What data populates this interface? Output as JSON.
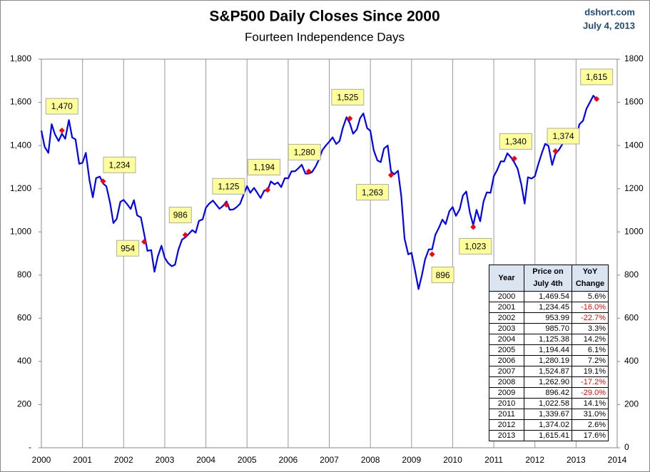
{
  "chart_data": {
    "type": "line",
    "title": "S&P500 Daily Closes Since 2000",
    "subtitle": "Fourteen Independence Days",
    "source": "dshort.com",
    "date": "July 4, 2013",
    "xlim": [
      2000,
      2014
    ],
    "xticks": [
      2000,
      2001,
      2002,
      2003,
      2004,
      2005,
      2006,
      2007,
      2008,
      2009,
      2010,
      2011,
      2012,
      2013,
      2014
    ],
    "ylim": [
      0,
      1800
    ],
    "yticks": [
      {
        "value": 0,
        "label": "-"
      },
      {
        "value": 200,
        "label": "200"
      },
      {
        "value": 400,
        "label": "400"
      },
      {
        "value": 600,
        "label": "600"
      },
      {
        "value": 800,
        "label": "800"
      },
      {
        "value": 1000,
        "label": "1,000"
      },
      {
        "value": 1200,
        "label": "1,200"
      },
      {
        "value": 1400,
        "label": "1,400"
      },
      {
        "value": 1600,
        "label": "1,600"
      },
      {
        "value": 1800,
        "label": "1,800"
      }
    ],
    "y2lim": [
      0,
      1800
    ],
    "y2ticks": [
      0,
      200,
      400,
      600,
      800,
      1000,
      1200,
      1400,
      1600,
      1800
    ],
    "x_grid": true,
    "line": {
      "color": "#0000ff",
      "x": [
        2000.0,
        2000.08,
        2000.17,
        2000.25,
        2000.33,
        2000.42,
        2000.5,
        2000.58,
        2000.67,
        2000.75,
        2000.83,
        2000.92,
        2001.0,
        2001.08,
        2001.17,
        2001.25,
        2001.33,
        2001.42,
        2001.5,
        2001.58,
        2001.67,
        2001.75,
        2001.83,
        2001.92,
        2002.0,
        2002.08,
        2002.17,
        2002.25,
        2002.33,
        2002.42,
        2002.5,
        2002.58,
        2002.67,
        2002.75,
        2002.83,
        2002.92,
        2003.0,
        2003.08,
        2003.17,
        2003.25,
        2003.33,
        2003.42,
        2003.5,
        2003.58,
        2003.67,
        2003.75,
        2003.83,
        2003.92,
        2004.0,
        2004.08,
        2004.17,
        2004.25,
        2004.33,
        2004.42,
        2004.5,
        2004.58,
        2004.67,
        2004.75,
        2004.83,
        2004.92,
        2005.0,
        2005.08,
        2005.17,
        2005.25,
        2005.33,
        2005.42,
        2005.5,
        2005.58,
        2005.67,
        2005.75,
        2005.83,
        2005.92,
        2006.0,
        2006.08,
        2006.17,
        2006.25,
        2006.33,
        2006.42,
        2006.5,
        2006.58,
        2006.67,
        2006.75,
        2006.83,
        2006.92,
        2007.0,
        2007.08,
        2007.17,
        2007.25,
        2007.33,
        2007.42,
        2007.5,
        2007.58,
        2007.67,
        2007.75,
        2007.83,
        2007.92,
        2008.0,
        2008.08,
        2008.17,
        2008.25,
        2008.33,
        2008.42,
        2008.5,
        2008.58,
        2008.67,
        2008.75,
        2008.83,
        2008.92,
        2009.0,
        2009.08,
        2009.17,
        2009.25,
        2009.33,
        2009.42,
        2009.5,
        2009.58,
        2009.67,
        2009.75,
        2009.83,
        2009.92,
        2010.0,
        2010.08,
        2010.17,
        2010.25,
        2010.33,
        2010.42,
        2010.5,
        2010.58,
        2010.67,
        2010.75,
        2010.83,
        2010.92,
        2011.0,
        2011.08,
        2011.17,
        2011.25,
        2011.33,
        2011.42,
        2011.5,
        2011.58,
        2011.67,
        2011.75,
        2011.83,
        2011.92,
        2012.0,
        2012.08,
        2012.17,
        2012.25,
        2012.33,
        2012.42,
        2012.5,
        2012.58,
        2012.67,
        2012.75,
        2012.83,
        2012.92,
        2013.0,
        2013.08,
        2013.17,
        2013.25,
        2013.33,
        2013.42,
        2013.5
      ],
      "values": [
        1469,
        1394,
        1366,
        1499,
        1452,
        1421,
        1455,
        1431,
        1518,
        1437,
        1429,
        1315,
        1320,
        1366,
        1240,
        1160,
        1249,
        1256,
        1224,
        1211,
        1134,
        1041,
        1060,
        1139,
        1148,
        1130,
        1106,
        1147,
        1076,
        1067,
        990,
        912,
        916,
        815,
        885,
        936,
        880,
        856,
        841,
        848,
        917,
        964,
        975,
        990,
        1008,
        996,
        1051,
        1058,
        1112,
        1131,
        1145,
        1126,
        1107,
        1121,
        1141,
        1102,
        1104,
        1115,
        1130,
        1174,
        1212,
        1181,
        1204,
        1181,
        1157,
        1192,
        1191,
        1234,
        1220,
        1229,
        1207,
        1249,
        1248,
        1280,
        1281,
        1295,
        1311,
        1270,
        1270,
        1277,
        1304,
        1336,
        1378,
        1401,
        1418,
        1438,
        1407,
        1421,
        1482,
        1531,
        1503,
        1455,
        1474,
        1527,
        1549,
        1481,
        1468,
        1378,
        1331,
        1323,
        1386,
        1400,
        1280,
        1267,
        1283,
        1166,
        969,
        896,
        903,
        826,
        735,
        798,
        873,
        919,
        919,
        987,
        1021,
        1057,
        1036,
        1096,
        1115,
        1074,
        1104,
        1169,
        1187,
        1089,
        1031,
        1102,
        1049,
        1141,
        1183,
        1181,
        1258,
        1286,
        1327,
        1326,
        1364,
        1345,
        1321,
        1292,
        1219,
        1131,
        1253,
        1247,
        1258,
        1312,
        1366,
        1408,
        1398,
        1310,
        1362,
        1379,
        1407,
        1441,
        1412,
        1416,
        1426,
        1498,
        1515,
        1569,
        1598,
        1631,
        1615
      ]
    },
    "july4": {
      "color": "#ff0000",
      "label_color": "#ffff99",
      "x": [
        2000.5,
        2001.5,
        2002.5,
        2003.5,
        2004.5,
        2005.5,
        2006.5,
        2007.5,
        2008.5,
        2009.5,
        2010.5,
        2011.5,
        2012.5,
        2013.5
      ],
      "values": [
        1469.54,
        1234.45,
        953.99,
        985.7,
        1125.38,
        1194.44,
        1280.19,
        1524.87,
        1262.9,
        896.42,
        1022.58,
        1339.67,
        1374.02,
        1615.41
      ],
      "value_labels": [
        "1,470",
        "1,234",
        "954",
        "986",
        "1,125",
        "1,194",
        "1,280",
        "1,525",
        "1,263",
        "896",
        "1,023",
        "1,340",
        "1,374",
        "1,615"
      ]
    }
  },
  "table": {
    "negative_color": "#ff0000",
    "header": [
      "Year",
      "Price on July 4th",
      "YoY Change"
    ],
    "rows": [
      [
        "2000",
        "1,469.54",
        "5.6%"
      ],
      [
        "2001",
        "1,234.45",
        "-16.0%"
      ],
      [
        "2002",
        "953.99",
        "-22.7%"
      ],
      [
        "2003",
        "985.70",
        "3.3%"
      ],
      [
        "2004",
        "1,125.38",
        "14.2%"
      ],
      [
        "2005",
        "1,194.44",
        "6.1%"
      ],
      [
        "2006",
        "1,280.19",
        "7.2%"
      ],
      [
        "2007",
        "1,524.87",
        "19.1%"
      ],
      [
        "2008",
        "1,262.90",
        "-17.2%"
      ],
      [
        "2009",
        "896.42",
        "-29.0%"
      ],
      [
        "2010",
        "1,022.58",
        "14.1%"
      ],
      [
        "2011",
        "1,339.67",
        "31.0%"
      ],
      [
        "2012",
        "1,374.02",
        "2.6%"
      ],
      [
        "2013",
        "1,615.41",
        "17.6%"
      ]
    ]
  }
}
